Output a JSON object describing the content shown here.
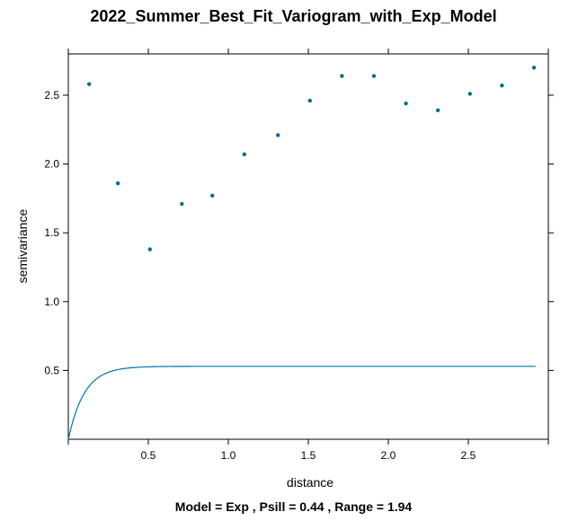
{
  "title": "2022_Summer_Best_Fit_Variogram_with_Exp_Model",
  "subtitle": "Model = Exp , Psill = 0.44 , Range = 1.94",
  "chart_data": {
    "type": "scatter",
    "title": "2022_Summer_Best_Fit_Variogram_with_Exp_Model",
    "xlabel": "distance",
    "ylabel": "semivariance",
    "xlim": [
      0,
      3.0
    ],
    "ylim": [
      0,
      2.8
    ],
    "xticks": [
      "0.5",
      "1.0",
      "1.5",
      "2.0",
      "2.5"
    ],
    "yticks": [
      "0.5",
      "1.0",
      "1.5",
      "2.0",
      "2.5"
    ],
    "grid": false,
    "points_color": "#006E8C",
    "line_color": "#0072B2",
    "series": [
      {
        "type": "scatter",
        "x": [
          0.13,
          0.31,
          0.51,
          0.71,
          0.9,
          1.1,
          1.31,
          1.51,
          1.71,
          1.91,
          2.11,
          2.31,
          2.51,
          2.71,
          2.91
        ],
        "y": [
          2.58,
          1.86,
          1.38,
          1.71,
          1.77,
          2.07,
          2.21,
          2.46,
          2.64,
          2.64,
          2.44,
          2.39,
          2.51,
          2.57,
          2.7
        ]
      },
      {
        "type": "line",
        "model": "Exp",
        "nugget": 0.09,
        "psill": 0.44,
        "range": 1.94,
        "effective_range": 0.1,
        "x_max": 2.92
      }
    ]
  }
}
